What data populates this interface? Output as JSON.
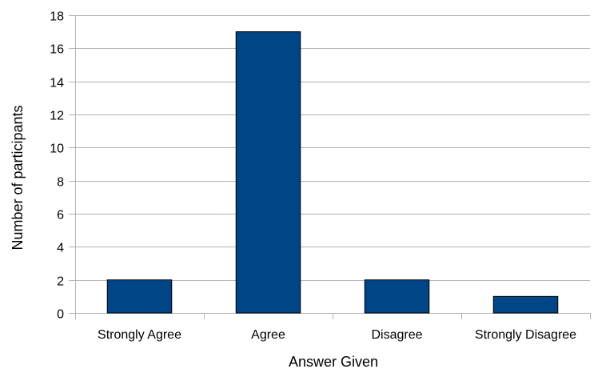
{
  "chart_data": {
    "type": "bar",
    "title": "",
    "xlabel": "Answer Given",
    "ylabel": "Number of participants",
    "categories": [
      "Strongly Agree",
      "Agree",
      "Disagree",
      "Strongly Disagree"
    ],
    "values": [
      2,
      17,
      2,
      1
    ],
    "ylim": [
      0,
      18
    ],
    "yticks": [
      0,
      2,
      4,
      6,
      8,
      10,
      12,
      14,
      16,
      18
    ],
    "grid": true,
    "legend": "none",
    "colors": {
      "bar_fill": "#004586",
      "bar_stroke": "#000000",
      "grid": "#b3b3b3",
      "axis": "#b3b3b3"
    }
  }
}
